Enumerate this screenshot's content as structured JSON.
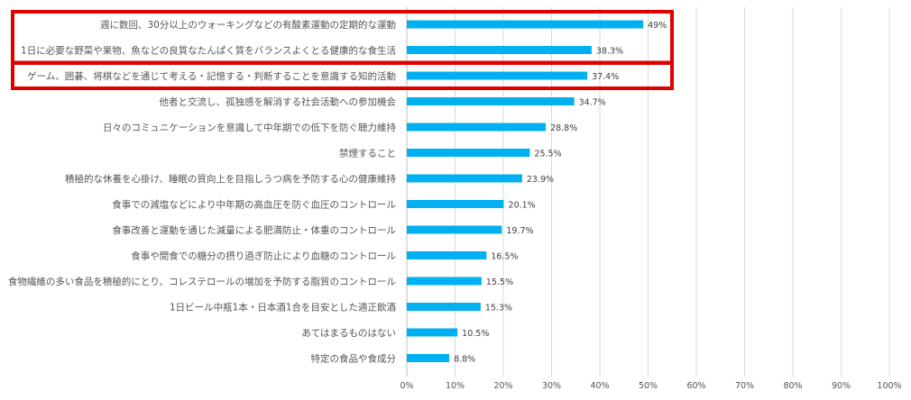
{
  "chart_data": {
    "type": "bar",
    "orientation": "horizontal",
    "categories": [
      "週に数回、30分以上のウォーキングなどの有酸素運動の定期的な運動",
      "1日に必要な野菜や果物、魚などの良質なたんぱく質をバランスよくとる健康的な食生活",
      "ゲーム、囲碁、将棋などを通じて考える・記憶する・判断することを意識する知的活動",
      "他者と交流し、孤独感を解消する社会活動への参加機会",
      "日々のコミュニケーションを意識して中年期での低下を防ぐ聴力維持",
      "禁煙すること",
      "積極的な休養を心掛け、睡眠の質向上を目指しうつ病を予防する心の健康維持",
      "食事での減塩などにより中年期の高血圧を防ぐ血圧のコントロール",
      "食事改善と運動を通じた減量による肥満防止・体重のコントロール",
      "食事や間食での糖分の摂り過ぎ防止により血糖のコントロール",
      "食物繊維の多い食品を積極的にとり、コレステロールの増加を予防する脂質のコントロール",
      "1日ビール中瓶1本・日本酒1合を目安とした適正飲酒",
      "あてはまるものはない",
      "特定の食品や食成分"
    ],
    "values": [
      49,
      38.3,
      37.4,
      34.7,
      28.8,
      25.5,
      23.9,
      20.1,
      19.7,
      16.5,
      15.5,
      15.3,
      10.5,
      8.8
    ],
    "value_labels": [
      "49%",
      "38.3%",
      "37.4%",
      "34.7%",
      "28.8%",
      "25.5%",
      "23.9%",
      "20.1%",
      "19.7%",
      "16.5%",
      "15.5%",
      "15.3%",
      "10.5%",
      "8.8%"
    ],
    "xlim": [
      0,
      100
    ],
    "x_ticks": [
      0,
      10,
      20,
      30,
      40,
      50,
      60,
      70,
      80,
      90,
      100
    ],
    "x_tick_labels": [
      "0%",
      "10%",
      "20%",
      "30%",
      "40%",
      "50%",
      "60%",
      "70%",
      "80%",
      "90%",
      "100%"
    ],
    "grid": true,
    "title": "",
    "xlabel": "",
    "ylabel": "",
    "highlighted_groups": [
      [
        0,
        1
      ],
      [
        2
      ]
    ]
  },
  "colors": {
    "bar": "#00b0f0",
    "highlight": "#e00000",
    "grid": "#d9d9d9",
    "text": "#555555"
  }
}
